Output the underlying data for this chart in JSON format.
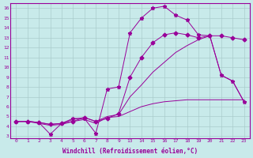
{
  "xlabel": "Windchill (Refroidissement éolien,°C)",
  "bg_color": "#c8eaea",
  "line_color": "#990099",
  "grid_color": "#aacccc",
  "ylim": [
    3,
    16.5
  ],
  "yticks": [
    3,
    4,
    5,
    6,
    7,
    8,
    9,
    10,
    11,
    12,
    13,
    14,
    15,
    16
  ],
  "xtick_labels": [
    "0",
    "1",
    "2",
    "3",
    "4",
    "5",
    "6",
    "7",
    "8",
    "9",
    "13",
    "14",
    "15",
    "16",
    "17",
    "18",
    "19",
    "20",
    "21",
    "22",
    "23"
  ],
  "lines": [
    {
      "y": [
        4.5,
        4.5,
        4.4,
        3.2,
        4.3,
        4.8,
        4.8,
        3.3,
        7.8,
        8.0,
        13.5,
        15.0,
        16.0,
        16.2,
        15.3,
        14.8,
        13.3,
        13.2,
        9.2,
        8.6,
        6.5
      ],
      "marker": "*",
      "markersize": 3.5
    },
    {
      "y": [
        4.5,
        4.5,
        4.4,
        4.2,
        4.3,
        4.5,
        4.9,
        4.5,
        4.8,
        5.3,
        9.0,
        11.0,
        12.5,
        13.3,
        13.5,
        13.3,
        13.0,
        13.2,
        13.2,
        13.0,
        12.8
      ],
      "marker": "D",
      "markersize": 2.5
    },
    {
      "y": [
        4.5,
        4.5,
        4.4,
        4.2,
        4.3,
        4.7,
        4.9,
        4.5,
        5.0,
        5.2,
        7.0,
        8.2,
        9.5,
        10.5,
        11.5,
        12.2,
        12.8,
        13.2,
        9.2,
        8.6,
        6.5
      ],
      "marker": null,
      "markersize": 0
    },
    {
      "y": [
        4.5,
        4.5,
        4.3,
        4.1,
        4.2,
        4.5,
        4.7,
        4.3,
        4.9,
        5.0,
        5.5,
        6.0,
        6.3,
        6.5,
        6.6,
        6.7,
        6.7,
        6.7,
        6.7,
        6.7,
        6.7
      ],
      "marker": null,
      "markersize": 0
    }
  ]
}
